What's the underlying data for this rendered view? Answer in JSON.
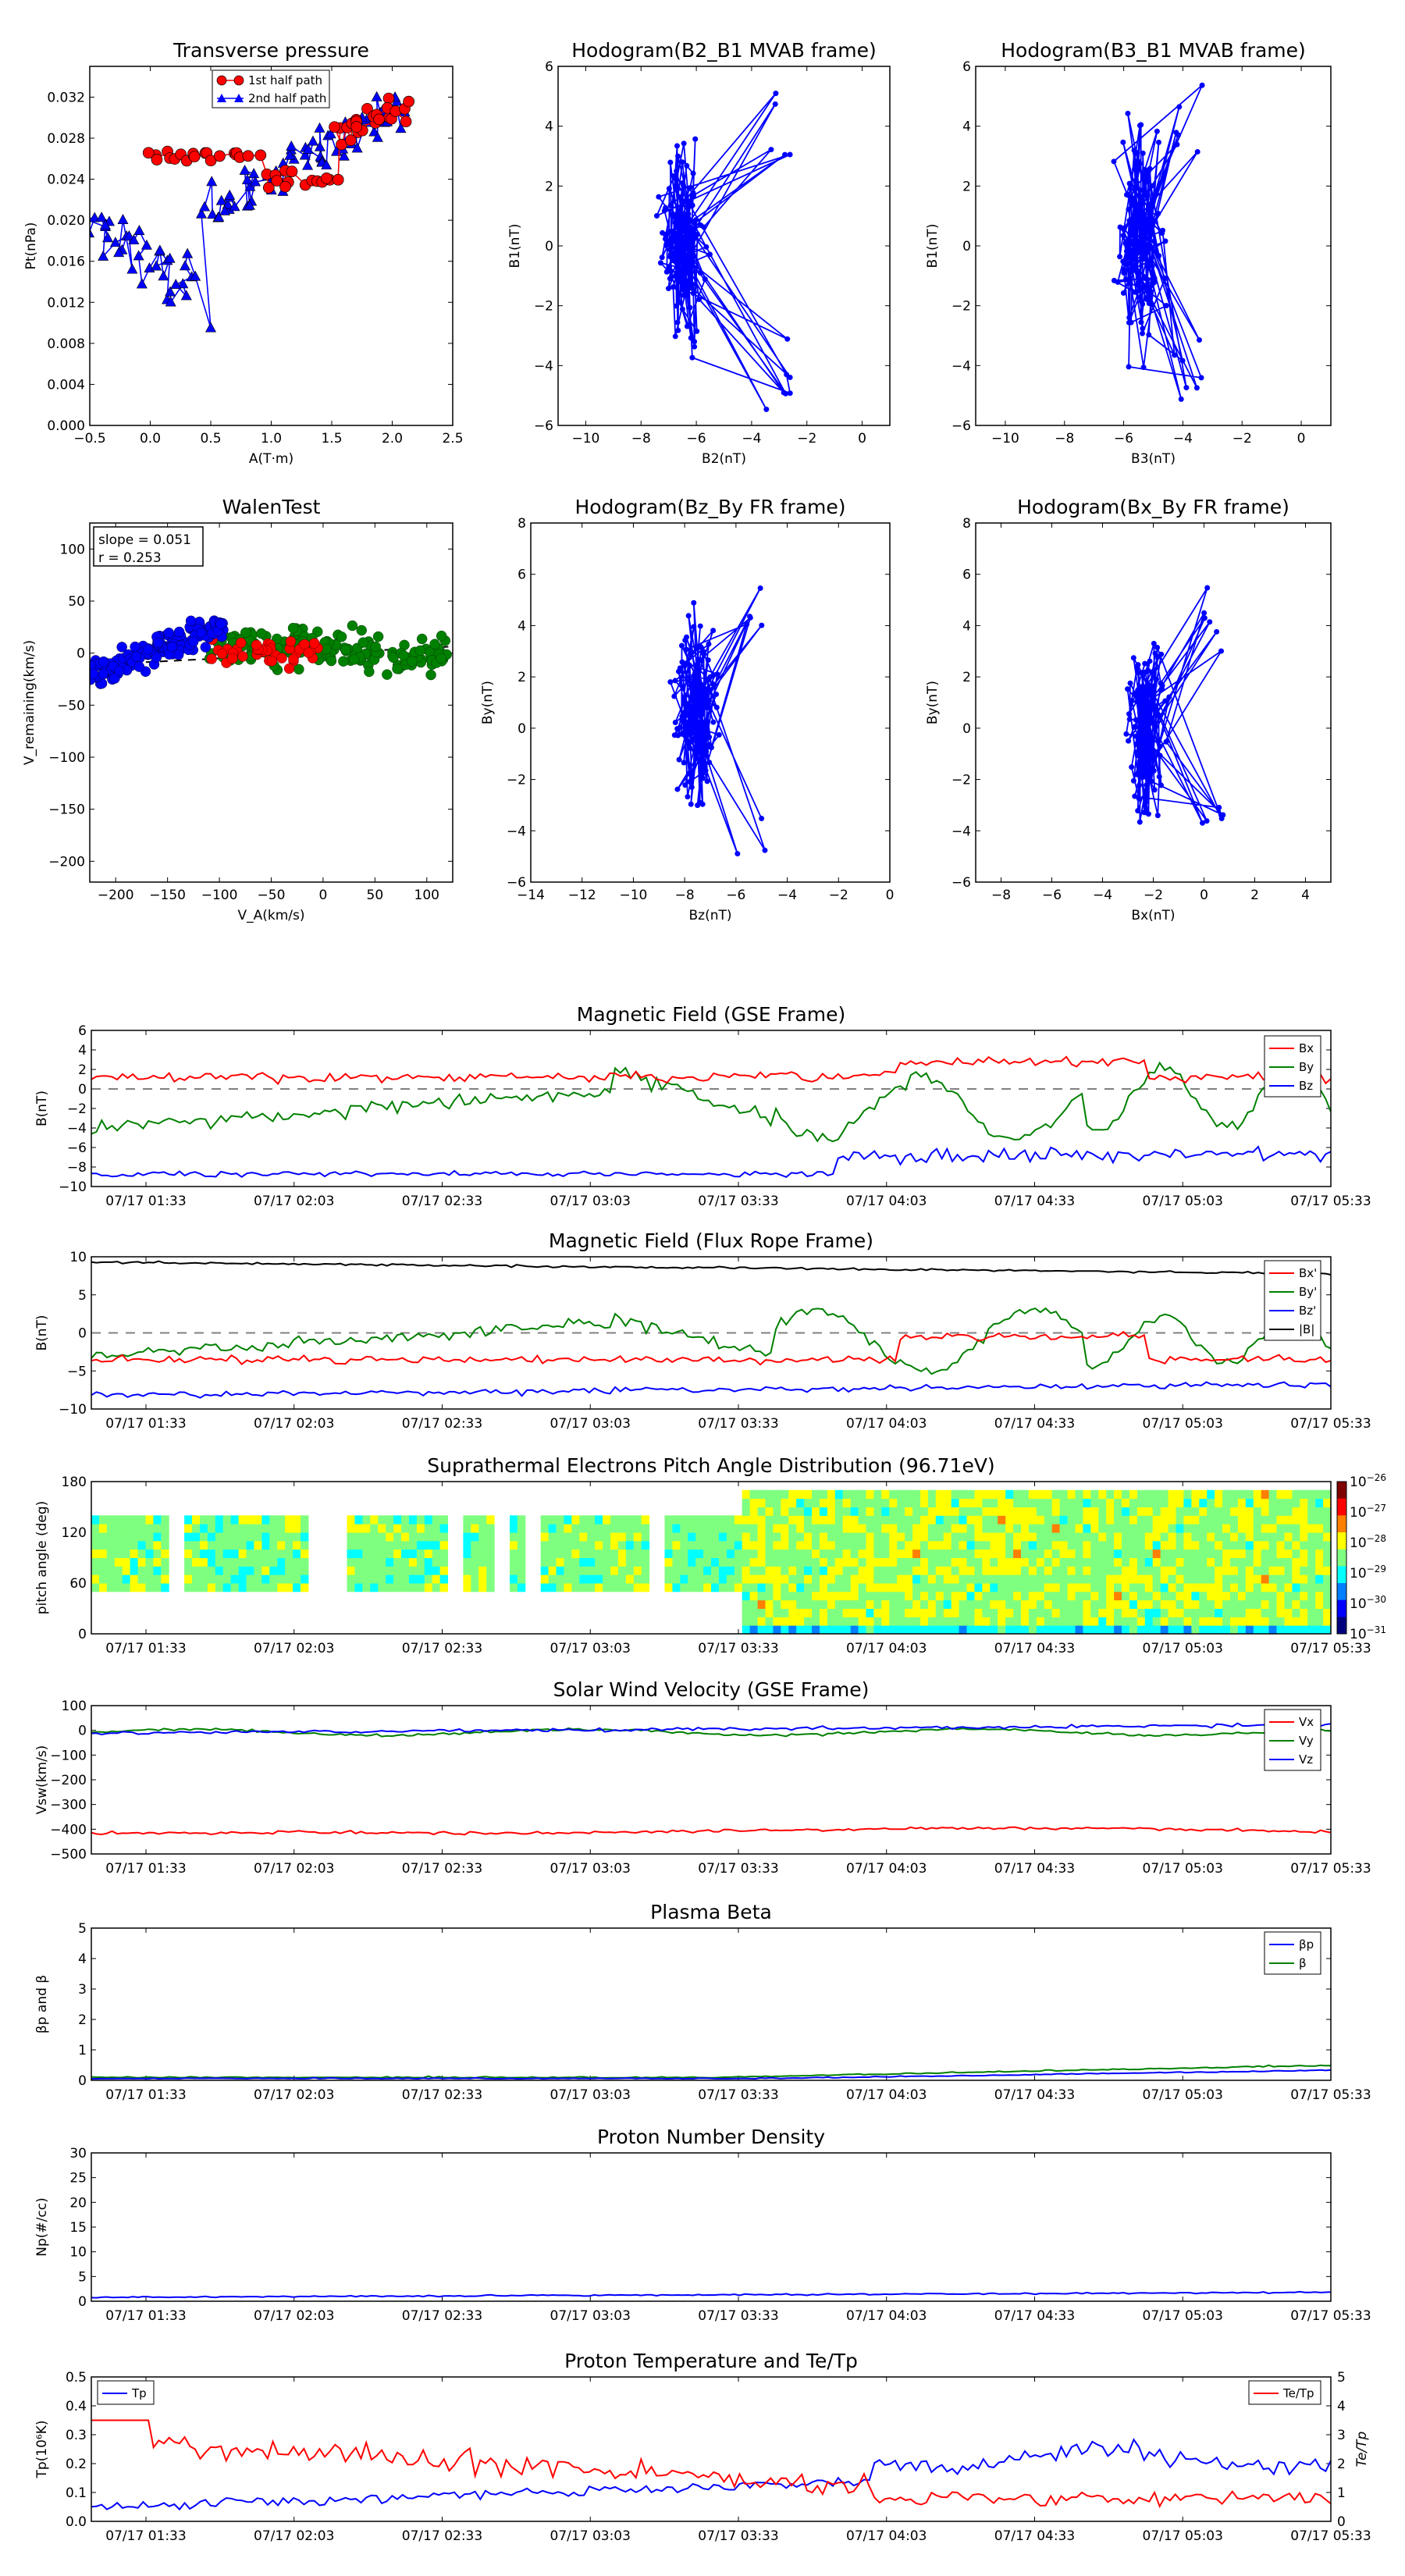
{
  "colors": {
    "red": "#ff0000",
    "green": "#008000",
    "blue": "#0000ff",
    "black": "#000000",
    "gray": "#808080",
    "jetTop": "#800000"
  },
  "time_ticks": [
    "07/17 01:33",
    "07/17 02:03",
    "07/17 02:33",
    "07/17 03:03",
    "07/17 03:33",
    "07/17 04:03",
    "07/17 04:33",
    "07/17 05:03",
    "07/17 05:33"
  ],
  "chart_data": [
    {
      "id": "pt",
      "type": "scatter",
      "title": "Transverse pressure",
      "xlabel": "A(T·m)",
      "ylabel": "Pt(nPa)",
      "xlim": [
        -0.5,
        2.5
      ],
      "ylim": [
        0,
        0.035
      ],
      "xticks": [
        "−0.5",
        "0.0",
        "0.5",
        "1.0",
        "1.5",
        "2.0",
        "2.5"
      ],
      "xtickvals": [
        -0.5,
        0,
        0.5,
        1,
        1.5,
        2,
        2.5
      ],
      "yticks": [
        "0.000",
        "0.004",
        "0.008",
        "0.012",
        "0.016",
        "0.020",
        "0.024",
        "0.028",
        "0.032"
      ],
      "ytickvals": [
        0,
        0.004,
        0.008,
        0.012,
        0.016,
        0.02,
        0.024,
        0.028,
        0.032
      ],
      "legend": [
        "1st half path",
        "2nd half path"
      ]
    },
    {
      "id": "h21",
      "type": "line",
      "title": "Hodogram(B2_B1 MVAB frame)",
      "xlabel": "B2(nT)",
      "ylabel": "B1(nT)",
      "xlim": [
        -11,
        1
      ],
      "ylim": [
        -6,
        6
      ],
      "xticks": [
        "−10",
        "−8",
        "−6",
        "−4",
        "−2",
        "0"
      ],
      "xtickvals": [
        -10,
        -8,
        -6,
        -4,
        -2,
        0
      ],
      "yticks": [
        "−6",
        "−4",
        "−2",
        "0",
        "2",
        "4",
        "6"
      ],
      "ytickvals": [
        -6,
        -4,
        -2,
        0,
        2,
        4,
        6
      ],
      "xc": -6.5,
      "yc": 0,
      "xr": 1.0,
      "yr": 2.6,
      "xmin": -8,
      "xmax": -2.5
    },
    {
      "id": "h31",
      "type": "line",
      "title": "Hodogram(B3_B1 MVAB frame)",
      "xlabel": "B3(nT)",
      "ylabel": "B1(nT)",
      "xlim": [
        -11,
        1
      ],
      "ylim": [
        -6,
        6
      ],
      "xticks": [
        "−10",
        "−8",
        "−6",
        "−4",
        "−2",
        "0"
      ],
      "xtickvals": [
        -10,
        -8,
        -6,
        -4,
        -2,
        0
      ],
      "yticks": [
        "−6",
        "−4",
        "−2",
        "0",
        "2",
        "4",
        "6"
      ],
      "ytickvals": [
        -6,
        -4,
        -2,
        0,
        2,
        4,
        6
      ],
      "xc": -5.5,
      "yc": 0,
      "xr": 0.9,
      "yr": 3.0,
      "xmin": -7.2,
      "xmax": -3.2
    },
    {
      "id": "walen",
      "type": "scatter",
      "title": "WalenTest",
      "xlabel": "V_A(km/s)",
      "ylabel": "V_remaining(km/s)",
      "xlim": [
        -225,
        125
      ],
      "ylim": [
        -220,
        125
      ],
      "xticks": [
        "−200",
        "−150",
        "−100",
        "−50",
        "0",
        "50",
        "100"
      ],
      "xtickvals": [
        -200,
        -150,
        -100,
        -50,
        0,
        50,
        100
      ],
      "yticks": [
        "−200",
        "−150",
        "−100",
        "−50",
        "0",
        "50",
        "100"
      ],
      "ytickvals": [
        -200,
        -150,
        -100,
        -50,
        0,
        50,
        100
      ],
      "slope": "slope = 0.051",
      "r": "r = 0.253"
    },
    {
      "id": "hzy",
      "type": "line",
      "title": "Hodogram(Bz_By FR frame)",
      "xlabel": "Bz(nT)",
      "ylabel": "By(nT)",
      "xlim": [
        -14,
        0
      ],
      "ylim": [
        -6,
        8
      ],
      "xticks": [
        "−14",
        "−12",
        "−10",
        "−8",
        "−6",
        "−4",
        "−2",
        "0"
      ],
      "xtickvals": [
        -14,
        -12,
        -10,
        -8,
        -6,
        -4,
        -2,
        0
      ],
      "yticks": [
        "−6",
        "−4",
        "−2",
        "0",
        "2",
        "4",
        "6",
        "8"
      ],
      "ytickvals": [
        -6,
        -4,
        -2,
        0,
        2,
        4,
        6,
        8
      ],
      "xc": -7.5,
      "yc": 0.5,
      "xr": 1.0,
      "yr": 3.0,
      "xmin": -9,
      "xmax": -4.8
    },
    {
      "id": "hxy",
      "type": "line",
      "title": "Hodogram(Bx_By FR frame)",
      "xlabel": "Bx(nT)",
      "ylabel": "By(nT)",
      "xlim": [
        -9,
        5
      ],
      "ylim": [
        -6,
        8
      ],
      "xticks": [
        "−8",
        "−6",
        "−4",
        "−2",
        "0",
        "2",
        "4"
      ],
      "xtickvals": [
        -8,
        -6,
        -4,
        -2,
        0,
        2,
        4
      ],
      "yticks": [
        "−6",
        "−4",
        "−2",
        "0",
        "2",
        "4",
        "6",
        "8"
      ],
      "ytickvals": [
        -6,
        -4,
        -2,
        0,
        2,
        4,
        6,
        8
      ],
      "xc": -2.3,
      "yc": 0,
      "xr": 0.9,
      "yr": 2.6,
      "xmin": -4.2,
      "xmax": 0.8
    },
    {
      "id": "bgse",
      "type": "line",
      "title": "Magnetic Field (GSE Frame)",
      "ylabel": "B(nT)",
      "ylim": [
        -10,
        6
      ],
      "yticks": [
        "−10",
        "−8",
        "−6",
        "−4",
        "−2",
        "0",
        "2",
        "4",
        "6"
      ],
      "ytickvals": [
        -10,
        -8,
        -6,
        -4,
        -2,
        0,
        2,
        4,
        6
      ],
      "series": [
        {
          "name": "Bx",
          "color": "red"
        },
        {
          "name": "By",
          "color": "green"
        },
        {
          "name": "Bz",
          "color": "blue"
        }
      ]
    },
    {
      "id": "bfr",
      "type": "line",
      "title": "Magnetic Field (Flux Rope Frame)",
      "ylabel": "B(nT)",
      "ylim": [
        -10,
        10
      ],
      "yticks": [
        "−10",
        "−5",
        "0",
        "5",
        "10"
      ],
      "ytickvals": [
        -10,
        -5,
        0,
        5,
        10
      ],
      "series": [
        {
          "name": "Bx'",
          "color": "red"
        },
        {
          "name": "By'",
          "color": "green"
        },
        {
          "name": "Bz'",
          "color": "blue"
        },
        {
          "name": "|B|",
          "color": "black"
        }
      ]
    },
    {
      "id": "pad",
      "type": "heatmap",
      "title": "Suprathermal Electrons Pitch Angle Distribution (96.71eV)",
      "ylabel": "pitch angle (deg)",
      "ylim": [
        0,
        180
      ],
      "yticks": [
        "0",
        "60",
        "120",
        "180"
      ],
      "ytickvals": [
        0,
        60,
        120,
        180
      ],
      "cbar": [
        "10",
        "10",
        "10",
        "10",
        "10",
        "10"
      ],
      "cbar_exp": [
        "−26",
        "−27",
        "−28",
        "−29",
        "−30",
        "−31"
      ]
    },
    {
      "id": "vsw",
      "type": "line",
      "title": "Solar Wind Velocity (GSE Frame)",
      "ylabel": "Vsw(km/s)",
      "ylim": [
        -500,
        100
      ],
      "yticks": [
        "−500",
        "−400",
        "−300",
        "−200",
        "−100",
        "0",
        "100"
      ],
      "ytickvals": [
        -500,
        -400,
        -300,
        -200,
        -100,
        0,
        100
      ],
      "series": [
        {
          "name": "Vx",
          "color": "red"
        },
        {
          "name": "Vy",
          "color": "green"
        },
        {
          "name": "Vz",
          "color": "blue"
        }
      ]
    },
    {
      "id": "beta",
      "type": "line",
      "title": "Plasma Beta",
      "ylabel": "βp and β",
      "ylim": [
        0,
        5
      ],
      "yticks": [
        "0",
        "1",
        "2",
        "3",
        "4",
        "5"
      ],
      "ytickvals": [
        0,
        1,
        2,
        3,
        4,
        5
      ],
      "series": [
        {
          "name": "βp",
          "color": "blue"
        },
        {
          "name": "β",
          "color": "green"
        }
      ]
    },
    {
      "id": "np",
      "type": "line",
      "title": "Proton Number Density",
      "ylabel": "Np(#/cc)",
      "ylim": [
        0,
        30
      ],
      "yticks": [
        "0",
        "5",
        "10",
        "15",
        "20",
        "25",
        "30"
      ],
      "ytickvals": [
        0,
        5,
        10,
        15,
        20,
        25,
        30
      ],
      "series": [
        {
          "name": "Np",
          "color": "blue"
        }
      ]
    },
    {
      "id": "tp",
      "type": "line",
      "title": "Proton Temperature and Te/Tp",
      "ylabel": "Tp(10⁶K)",
      "ylabel2": "Te/Tp",
      "ylim": [
        0,
        0.5
      ],
      "yticks": [
        "0.0",
        "0.1",
        "0.2",
        "0.3",
        "0.4",
        "0.5"
      ],
      "ytickvals": [
        0,
        0.1,
        0.2,
        0.3,
        0.4,
        0.5
      ],
      "ylim2": [
        0,
        5
      ],
      "yticks2": [
        "0",
        "1",
        "2",
        "3",
        "4",
        "5"
      ],
      "ytickvals2": [
        0,
        1,
        2,
        3,
        4,
        5
      ],
      "series": [
        {
          "name": "Tp",
          "color": "blue"
        },
        {
          "name": "Te/Tp",
          "color": "red"
        }
      ]
    }
  ]
}
